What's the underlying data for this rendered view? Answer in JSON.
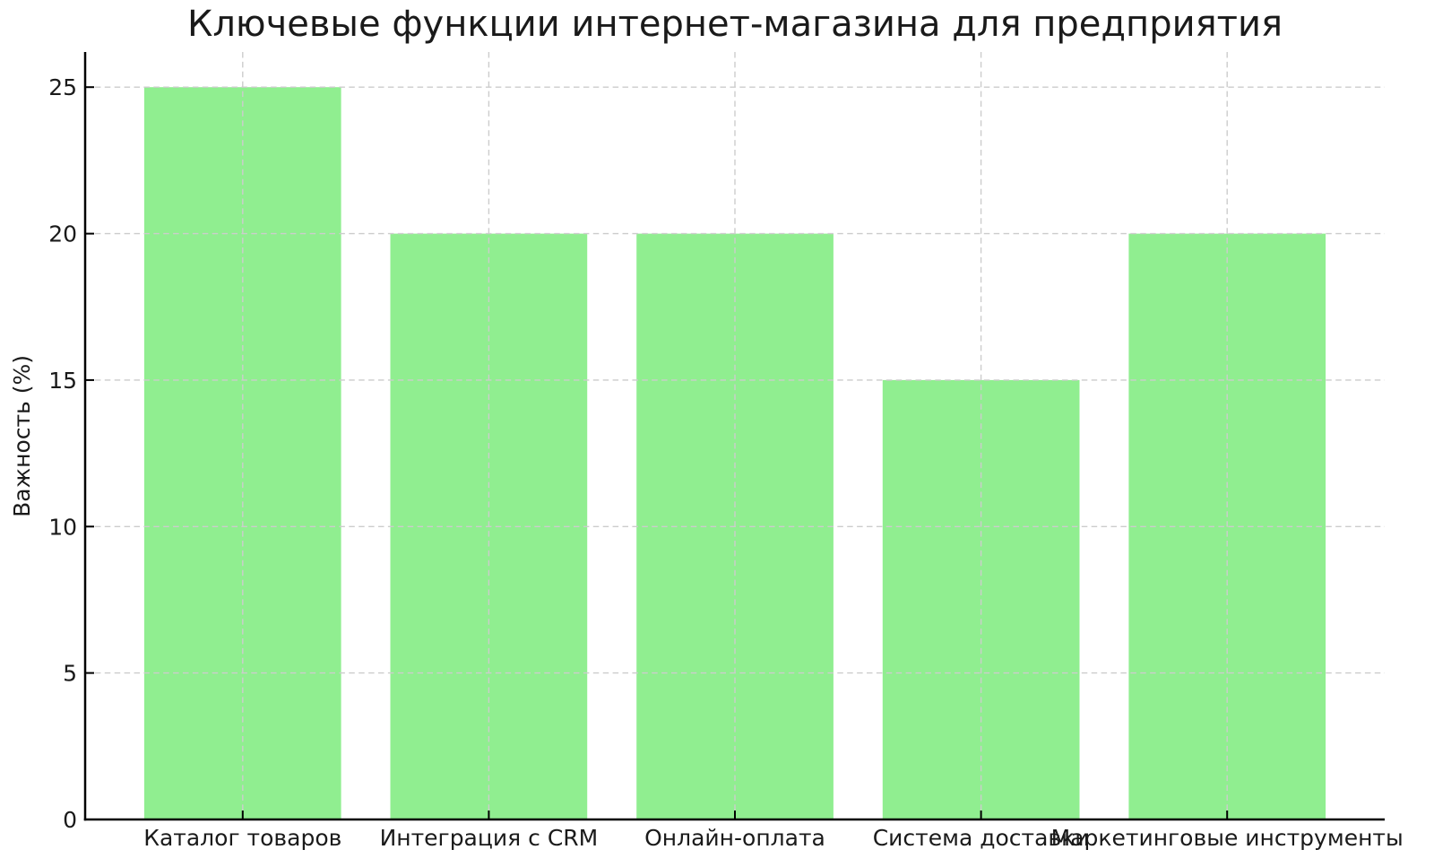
{
  "chart_data": {
    "type": "bar",
    "title": "Ключевые функции интернет-магазина для предприятия",
    "categories": [
      "Каталог товаров",
      "Интеграция с CRM",
      "Онлайн-оплата",
      "Система доставки",
      "Маркетинговые инструменты"
    ],
    "values": [
      25,
      20,
      20,
      15,
      20
    ],
    "xlabel": "",
    "ylabel": "Важность (%)",
    "yticks": [
      0,
      5,
      10,
      15,
      20,
      25
    ],
    "ylim": [
      0,
      26.2
    ],
    "bar_color": "#90EE90",
    "bar_width_fraction": 0.8,
    "grid": true,
    "grid_style": "dashed",
    "grid_color": "#cccccc",
    "axis_color": "#000000",
    "text_color": "#1a1a1a",
    "background": "#ffffff",
    "legend": "none"
  }
}
